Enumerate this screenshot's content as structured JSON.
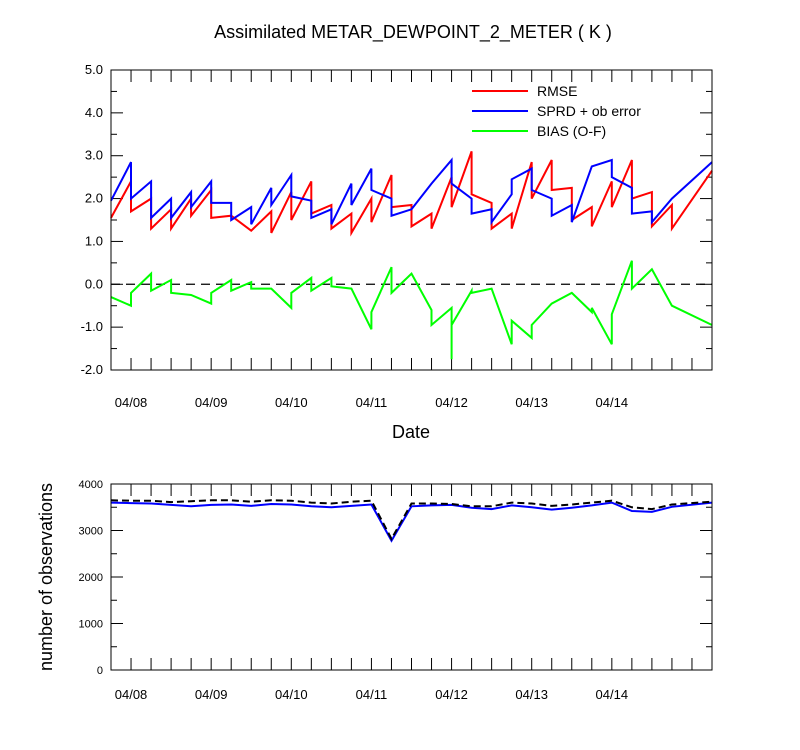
{
  "chart_data": [
    {
      "type": "line",
      "title": "Assimilated METAR_DEWPOINT_2_METER ( K )",
      "xlabel": "Date",
      "ylabel": "",
      "xlim": [
        0,
        7.5
      ],
      "ylim": [
        -2.0,
        5.0
      ],
      "yticks": [
        -2.0,
        -1.0,
        0.0,
        1.0,
        2.0,
        3.0,
        4.0,
        5.0
      ],
      "ytick_labels": [
        "-2.0",
        "-1.0",
        "0.0",
        "1.0",
        "2.0",
        "3.0",
        "4.0",
        "5.0"
      ],
      "x_ticks": [
        0.25,
        1.25,
        2.25,
        3.25,
        4.25,
        5.25,
        6.25
      ],
      "x_tick_labels": [
        "04/08",
        "04/09",
        "04/10",
        "04/11",
        "04/12",
        "04/13",
        "04/14"
      ],
      "minor_x_ticks_per_day": 4,
      "reference_line": {
        "y": 0.0,
        "style": "dashed"
      },
      "legend": {
        "placement": "top-right"
      },
      "series": [
        {
          "name": "RMSE",
          "color": "#ff0000",
          "points": [
            [
              0.0,
              1.55
            ],
            [
              0.25,
              2.4
            ],
            [
              0.25,
              1.7
            ],
            [
              0.5,
              2.0
            ],
            [
              0.5,
              1.3
            ],
            [
              0.75,
              1.75
            ],
            [
              0.75,
              1.3
            ],
            [
              1.0,
              2.0
            ],
            [
              1.0,
              1.6
            ],
            [
              1.25,
              2.2
            ],
            [
              1.25,
              1.55
            ],
            [
              1.5,
              1.6
            ],
            [
              1.75,
              1.25
            ],
            [
              2.0,
              1.7
            ],
            [
              2.0,
              1.2
            ],
            [
              2.25,
              2.15
            ],
            [
              2.25,
              1.5
            ],
            [
              2.5,
              2.4
            ],
            [
              2.5,
              1.65
            ],
            [
              2.75,
              1.85
            ],
            [
              2.75,
              1.3
            ],
            [
              3.0,
              1.65
            ],
            [
              3.0,
              1.2
            ],
            [
              3.25,
              2.0
            ],
            [
              3.25,
              1.45
            ],
            [
              3.5,
              2.55
            ],
            [
              3.5,
              1.8
            ],
            [
              3.75,
              1.85
            ],
            [
              3.75,
              1.35
            ],
            [
              4.0,
              1.65
            ],
            [
              4.0,
              1.3
            ],
            [
              4.25,
              2.5
            ],
            [
              4.25,
              1.8
            ],
            [
              4.5,
              3.1
            ],
            [
              4.5,
              2.1
            ],
            [
              4.75,
              1.9
            ],
            [
              4.75,
              1.3
            ],
            [
              5.0,
              1.65
            ],
            [
              5.0,
              1.3
            ],
            [
              5.25,
              2.85
            ],
            [
              5.25,
              2.0
            ],
            [
              5.5,
              2.9
            ],
            [
              5.5,
              2.2
            ],
            [
              5.75,
              2.25
            ],
            [
              5.75,
              1.5
            ],
            [
              6.0,
              1.8
            ],
            [
              6.0,
              1.35
            ],
            [
              6.25,
              2.4
            ],
            [
              6.25,
              1.8
            ],
            [
              6.5,
              2.9
            ],
            [
              6.5,
              2.0
            ],
            [
              6.75,
              2.15
            ],
            [
              6.75,
              1.35
            ],
            [
              7.0,
              1.85
            ],
            [
              7.0,
              1.3
            ],
            [
              7.5,
              2.65
            ]
          ]
        },
        {
          "name": "SPRD + ob error",
          "color": "#0000ff",
          "points": [
            [
              0.0,
              1.95
            ],
            [
              0.25,
              2.85
            ],
            [
              0.25,
              2.0
            ],
            [
              0.5,
              2.4
            ],
            [
              0.5,
              1.55
            ],
            [
              0.75,
              2.0
            ],
            [
              0.75,
              1.55
            ],
            [
              1.0,
              2.15
            ],
            [
              1.0,
              1.8
            ],
            [
              1.25,
              2.4
            ],
            [
              1.25,
              1.9
            ],
            [
              1.5,
              1.9
            ],
            [
              1.5,
              1.5
            ],
            [
              1.75,
              1.8
            ],
            [
              1.75,
              1.4
            ],
            [
              2.0,
              2.25
            ],
            [
              2.0,
              1.85
            ],
            [
              2.25,
              2.55
            ],
            [
              2.25,
              2.05
            ],
            [
              2.5,
              1.95
            ],
            [
              2.5,
              1.55
            ],
            [
              2.75,
              1.75
            ],
            [
              2.75,
              1.4
            ],
            [
              3.0,
              2.35
            ],
            [
              3.0,
              1.85
            ],
            [
              3.25,
              2.7
            ],
            [
              3.25,
              2.2
            ],
            [
              3.5,
              2.0
            ],
            [
              3.5,
              1.6
            ],
            [
              3.75,
              1.75
            ],
            [
              4.0,
              2.35
            ],
            [
              4.25,
              2.9
            ],
            [
              4.25,
              2.35
            ],
            [
              4.5,
              2.0
            ],
            [
              4.5,
              1.65
            ],
            [
              4.75,
              1.75
            ],
            [
              4.75,
              1.45
            ],
            [
              5.0,
              2.1
            ],
            [
              5.0,
              2.45
            ],
            [
              5.25,
              2.7
            ],
            [
              5.25,
              2.2
            ],
            [
              5.5,
              2.0
            ],
            [
              5.5,
              1.6
            ],
            [
              5.75,
              1.85
            ],
            [
              5.75,
              1.45
            ],
            [
              6.0,
              2.75
            ],
            [
              6.25,
              2.9
            ],
            [
              6.25,
              2.5
            ],
            [
              6.5,
              2.25
            ],
            [
              6.5,
              1.65
            ],
            [
              6.75,
              1.7
            ],
            [
              6.75,
              1.45
            ],
            [
              7.0,
              2.0
            ],
            [
              7.5,
              2.85
            ]
          ]
        },
        {
          "name": "BIAS (O-F)",
          "color": "#00ff00",
          "points": [
            [
              0.0,
              -0.3
            ],
            [
              0.25,
              -0.5
            ],
            [
              0.25,
              -0.2
            ],
            [
              0.5,
              0.25
            ],
            [
              0.5,
              -0.15
            ],
            [
              0.75,
              0.1
            ],
            [
              0.75,
              -0.2
            ],
            [
              1.0,
              -0.25
            ],
            [
              1.25,
              -0.45
            ],
            [
              1.25,
              -0.2
            ],
            [
              1.5,
              0.1
            ],
            [
              1.5,
              -0.15
            ],
            [
              1.75,
              0.05
            ],
            [
              1.75,
              -0.1
            ],
            [
              2.0,
              -0.1
            ],
            [
              2.25,
              -0.55
            ],
            [
              2.25,
              -0.2
            ],
            [
              2.5,
              0.15
            ],
            [
              2.5,
              -0.15
            ],
            [
              2.75,
              0.15
            ],
            [
              2.75,
              -0.05
            ],
            [
              3.0,
              -0.1
            ],
            [
              3.25,
              -1.05
            ],
            [
              3.25,
              -0.65
            ],
            [
              3.5,
              0.4
            ],
            [
              3.5,
              -0.2
            ],
            [
              3.75,
              0.25
            ],
            [
              4.0,
              -0.6
            ],
            [
              4.0,
              -0.95
            ],
            [
              4.25,
              -0.55
            ],
            [
              4.25,
              -1.75
            ],
            [
              4.25,
              -0.95
            ],
            [
              4.5,
              -0.15
            ],
            [
              4.5,
              -0.2
            ],
            [
              4.75,
              -0.1
            ],
            [
              5.0,
              -1.4
            ],
            [
              5.0,
              -0.85
            ],
            [
              5.25,
              -1.25
            ],
            [
              5.25,
              -0.95
            ],
            [
              5.5,
              -0.45
            ],
            [
              5.75,
              -0.2
            ],
            [
              6.0,
              -0.65
            ],
            [
              6.0,
              -0.55
            ],
            [
              6.25,
              -1.4
            ],
            [
              6.25,
              -0.7
            ],
            [
              6.5,
              0.55
            ],
            [
              6.5,
              -0.1
            ],
            [
              6.75,
              0.35
            ],
            [
              7.0,
              -0.5
            ],
            [
              7.5,
              -0.95
            ]
          ]
        }
      ]
    },
    {
      "type": "line",
      "title": "",
      "xlabel": "",
      "ylabel": "number of observations",
      "xlim": [
        0,
        7.5
      ],
      "ylim": [
        0,
        4000
      ],
      "yticks": [
        0,
        1000,
        2000,
        3000,
        4000
      ],
      "ytick_labels": [
        "0",
        "1000",
        "2000",
        "3000",
        "4000"
      ],
      "x_ticks": [
        0.25,
        1.25,
        2.25,
        3.25,
        4.25,
        5.25,
        6.25
      ],
      "x_tick_labels": [
        "04/08",
        "04/09",
        "04/10",
        "04/11",
        "04/12",
        "04/13",
        "04/14"
      ],
      "minor_x_ticks_per_day": 4,
      "series": [
        {
          "color": "#0000ff",
          "style": "solid",
          "points": [
            [
              0.0,
              3600
            ],
            [
              0.25,
              3590
            ],
            [
              0.5,
              3580
            ],
            [
              0.75,
              3550
            ],
            [
              1.0,
              3520
            ],
            [
              1.25,
              3550
            ],
            [
              1.5,
              3560
            ],
            [
              1.75,
              3530
            ],
            [
              2.0,
              3570
            ],
            [
              2.25,
              3560
            ],
            [
              2.5,
              3520
            ],
            [
              2.75,
              3500
            ],
            [
              3.0,
              3530
            ],
            [
              3.25,
              3560
            ],
            [
              3.5,
              2780
            ],
            [
              3.75,
              3520
            ],
            [
              4.0,
              3540
            ],
            [
              4.25,
              3550
            ],
            [
              4.5,
              3490
            ],
            [
              4.75,
              3460
            ],
            [
              5.0,
              3540
            ],
            [
              5.25,
              3500
            ],
            [
              5.5,
              3450
            ],
            [
              5.75,
              3490
            ],
            [
              6.0,
              3540
            ],
            [
              6.25,
              3600
            ],
            [
              6.5,
              3420
            ],
            [
              6.75,
              3400
            ],
            [
              7.0,
              3510
            ],
            [
              7.5,
              3600
            ]
          ]
        },
        {
          "color": "#000000",
          "style": "dashed",
          "points": [
            [
              0.0,
              3650
            ],
            [
              0.25,
              3640
            ],
            [
              0.5,
              3640
            ],
            [
              0.75,
              3610
            ],
            [
              1.0,
              3630
            ],
            [
              1.25,
              3650
            ],
            [
              1.5,
              3650
            ],
            [
              1.75,
              3620
            ],
            [
              2.0,
              3650
            ],
            [
              2.25,
              3640
            ],
            [
              2.5,
              3600
            ],
            [
              2.75,
              3580
            ],
            [
              3.0,
              3620
            ],
            [
              3.25,
              3640
            ],
            [
              3.5,
              2820
            ],
            [
              3.75,
              3580
            ],
            [
              4.0,
              3580
            ],
            [
              4.25,
              3570
            ],
            [
              4.5,
              3520
            ],
            [
              4.75,
              3520
            ],
            [
              5.0,
              3600
            ],
            [
              5.25,
              3580
            ],
            [
              5.5,
              3530
            ],
            [
              5.75,
              3560
            ],
            [
              6.0,
              3600
            ],
            [
              6.25,
              3640
            ],
            [
              6.5,
              3500
            ],
            [
              6.75,
              3460
            ],
            [
              7.0,
              3560
            ],
            [
              7.5,
              3620
            ]
          ]
        }
      ]
    }
  ]
}
